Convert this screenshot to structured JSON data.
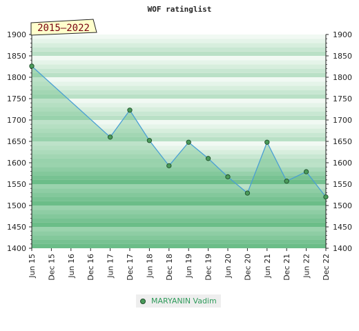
{
  "chart_data": {
    "type": "area",
    "title": "WOF ratinglist",
    "period_badge": "2015–2022",
    "categories": [
      "Jun 15",
      "Dec 15",
      "Jun 16",
      "Dec 16",
      "Jun 17",
      "Dec 17",
      "Jun 18",
      "Dec 18",
      "Jun 19",
      "Dec 19",
      "Jun 20",
      "Dec 20",
      "Jun 21",
      "Dec 21",
      "Jun 22",
      "Dec 22"
    ],
    "ylim": [
      1400,
      1900
    ],
    "yticks": [
      1400,
      1450,
      1500,
      1550,
      1600,
      1650,
      1700,
      1750,
      1800,
      1850,
      1900
    ],
    "series": [
      {
        "name": "MARYANIN Vadim",
        "points": [
          {
            "x": 0,
            "y": 1826
          },
          {
            "x": 4,
            "y": 1660
          },
          {
            "x": 5,
            "y": 1723
          },
          {
            "x": 6,
            "y": 1652
          },
          {
            "x": 7,
            "y": 1593
          },
          {
            "x": 8,
            "y": 1648
          },
          {
            "x": 9,
            "y": 1610
          },
          {
            "x": 10,
            "y": 1567
          },
          {
            "x": 11,
            "y": 1529
          },
          {
            "x": 12,
            "y": 1648
          },
          {
            "x": 13,
            "y": 1557
          },
          {
            "x": 14,
            "y": 1579
          },
          {
            "x": 15,
            "y": 1520
          }
        ]
      }
    ],
    "legend_position": "bottom",
    "colors": {
      "line": "#4a9fd4",
      "marker": "#4a9a5a",
      "fill": "#5cb87a",
      "band_dark": "#b7dfc3",
      "band_light": "#eef8f0"
    }
  }
}
